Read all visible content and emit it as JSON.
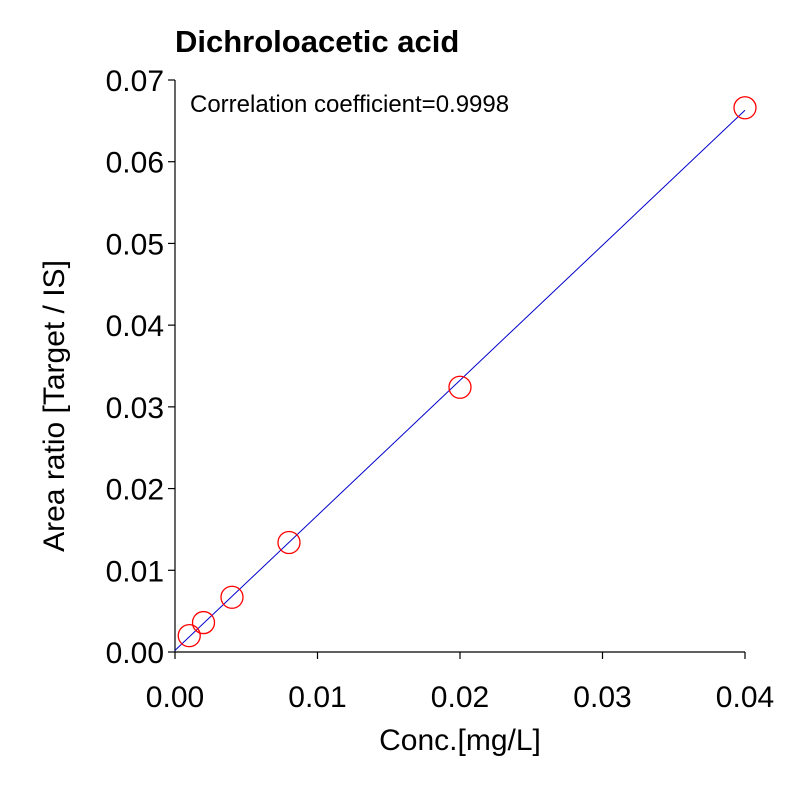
{
  "chart_data": {
    "type": "scatter",
    "title": "Dichroloacetic acid",
    "xlabel": "Conc.[mg/L]",
    "ylabel": "Area ratio [Target / IS]",
    "annotation": "Correlation coefficient=0.9998",
    "xlim": [
      0,
      0.04
    ],
    "ylim": [
      0,
      0.07
    ],
    "x_ticks": [
      "0.00",
      "0.01",
      "0.02",
      "0.03",
      "0.04"
    ],
    "y_ticks": [
      "0.00",
      "0.01",
      "0.02",
      "0.03",
      "0.04",
      "0.05",
      "0.06",
      "0.07"
    ],
    "grid": false,
    "series": [
      {
        "type": "scatter",
        "marker": "open-circle",
        "color": "#ff0000",
        "x": [
          0.001,
          0.002,
          0.004,
          0.008,
          0.02,
          0.04
        ],
        "y": [
          0.002,
          0.0036,
          0.0067,
          0.0134,
          0.0324,
          0.0666
        ]
      },
      {
        "type": "line",
        "color": "#0000cc",
        "x": [
          0,
          0.04
        ],
        "y": [
          0.0002,
          0.0663
        ]
      }
    ]
  }
}
